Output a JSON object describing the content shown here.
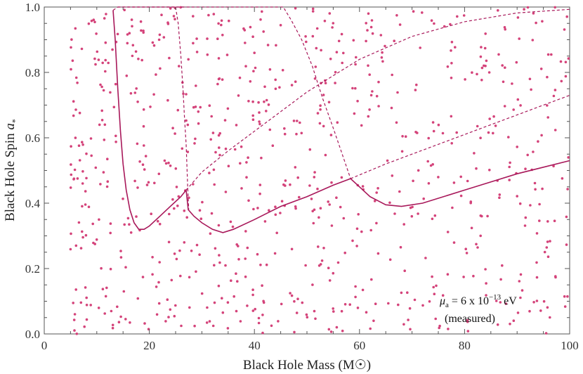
{
  "chart_data": {
    "type": "scatter",
    "title": "",
    "xlabel": "Black Hole Mass (M☉)",
    "ylabel_main": "Black Hole Spin ",
    "ylabel_sym": "a",
    "ylabel_sub": "*",
    "xlim": [
      0,
      100
    ],
    "ylim": [
      0.0,
      1.0
    ],
    "xticks": [
      0,
      20,
      40,
      60,
      80,
      100
    ],
    "yticks": [
      0.0,
      0.2,
      0.4,
      0.6,
      0.8,
      1.0
    ],
    "xtick_labels": [
      "0",
      "20",
      "40",
      "60",
      "80",
      "100"
    ],
    "ytick_labels": [
      "0.0",
      "0.2",
      "0.4",
      "0.6",
      "0.8",
      "1.0"
    ],
    "grid": false,
    "color": "#d4437a",
    "line_color": "#a8185a",
    "annotation": {
      "mu": "μ",
      "mu_sub": "a",
      "text1": " = 6 x 10",
      "exponent": "−13",
      "text2": " eV",
      "line2": "(measured)"
    },
    "scatter_count": 800,
    "scatter_x_range": [
      5,
      100
    ],
    "scatter_y_range": [
      0.0,
      1.0
    ],
    "solid_curve": [
      [
        13.1,
        0.99
      ],
      [
        13.5,
        0.9
      ],
      [
        14.0,
        0.75
      ],
      [
        14.5,
        0.62
      ],
      [
        15.0,
        0.52
      ],
      [
        15.6,
        0.44
      ],
      [
        16.3,
        0.38
      ],
      [
        17.1,
        0.34
      ],
      [
        18.0,
        0.32
      ],
      [
        19.0,
        0.32
      ],
      [
        20.0,
        0.33
      ],
      [
        22.0,
        0.36
      ],
      [
        24.0,
        0.39
      ],
      [
        26.0,
        0.42
      ],
      [
        27.0,
        0.44
      ],
      [
        27.4,
        0.38
      ],
      [
        28.5,
        0.36
      ],
      [
        30.0,
        0.34
      ],
      [
        32.0,
        0.32
      ],
      [
        34.0,
        0.31
      ],
      [
        36.0,
        0.32
      ],
      [
        40.0,
        0.35
      ],
      [
        45.0,
        0.39
      ],
      [
        50.0,
        0.42
      ],
      [
        55.0,
        0.455
      ],
      [
        58.3,
        0.475
      ],
      [
        60.0,
        0.45
      ],
      [
        62.0,
        0.42
      ],
      [
        65.0,
        0.395
      ],
      [
        68.0,
        0.39
      ],
      [
        72.0,
        0.4
      ],
      [
        80.0,
        0.44
      ],
      [
        90.0,
        0.49
      ],
      [
        100.0,
        0.53
      ]
    ],
    "dashed_curves": [
      [
        [
          13.1,
          0.99
        ],
        [
          14.0,
          1.0
        ],
        [
          27.0,
          1.0
        ]
      ],
      [
        [
          25.0,
          1.0
        ],
        [
          25.5,
          0.95
        ],
        [
          26.0,
          0.85
        ],
        [
          26.4,
          0.75
        ],
        [
          26.7,
          0.66
        ],
        [
          27.0,
          0.58
        ],
        [
          27.3,
          0.45
        ],
        [
          27.5,
          0.38
        ]
      ],
      [
        [
          27.0,
          0.44
        ],
        [
          30.0,
          0.495
        ],
        [
          35.0,
          0.56
        ],
        [
          40.0,
          0.62
        ],
        [
          45.0,
          0.68
        ],
        [
          50.0,
          0.74
        ],
        [
          55.0,
          0.79
        ],
        [
          60.0,
          0.84
        ],
        [
          70.0,
          0.91
        ],
        [
          80.0,
          0.955
        ],
        [
          90.0,
          0.982
        ],
        [
          100.0,
          0.993
        ]
      ],
      [
        [
          14.0,
          1.0
        ],
        [
          45.5,
          1.0
        ],
        [
          47.0,
          0.96
        ],
        [
          49.0,
          0.9
        ],
        [
          51.0,
          0.82
        ],
        [
          53.0,
          0.72
        ],
        [
          55.0,
          0.63
        ],
        [
          56.5,
          0.56
        ],
        [
          58.3,
          0.475
        ]
      ],
      [
        [
          58.3,
          0.475
        ],
        [
          65.0,
          0.52
        ],
        [
          75.0,
          0.58
        ],
        [
          85.0,
          0.64
        ],
        [
          95.0,
          0.7
        ],
        [
          100.0,
          0.73
        ]
      ]
    ]
  }
}
